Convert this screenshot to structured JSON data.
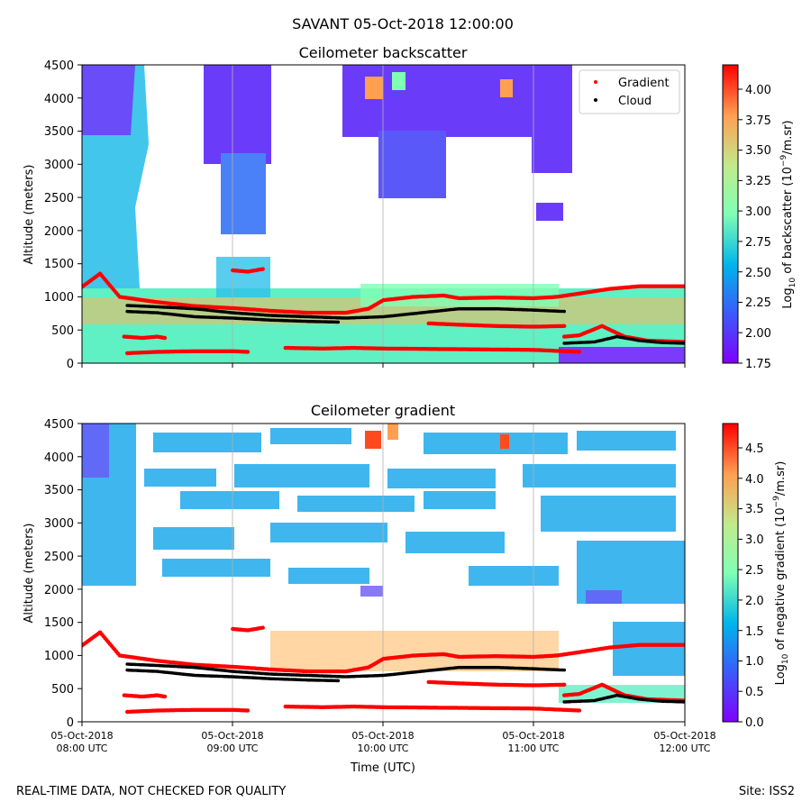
{
  "suptitle": "SAVANT 05-Oct-2018 12:00:00",
  "footer": {
    "left": "REAL-TIME DATA, NOT CHECKED FOR QUALITY",
    "right": "Site: ISS2"
  },
  "chart_data": [
    {
      "type": "heatmap",
      "title": "Ceilometer backscatter",
      "xlabel": "",
      "ylabel": "Altitude (meters)",
      "xlim": [
        "05-Oct-2018 08:00 UTC",
        "05-Oct-2018 12:00 UTC"
      ],
      "ylim": [
        0,
        4500
      ],
      "y_ticks": [
        "0",
        "500",
        "1000",
        "1500",
        "2000",
        "2500",
        "3000",
        "3500",
        "4000",
        "4500"
      ],
      "grid": "vertical lines at hourly ticks",
      "colormap": "rainbow",
      "colorbar": {
        "label_prefix": "Log",
        "label_sub": "10",
        "label_rest": " of backscatter (10",
        "label_exp": "−9",
        "label_unit": "/m.sr)",
        "range": [
          1.75,
          4.2
        ],
        "ticks": [
          "1.75",
          "2.00",
          "2.25",
          "2.50",
          "2.75",
          "3.00",
          "3.25",
          "3.50",
          "3.75",
          "4.00"
        ]
      },
      "legend": {
        "placement": "top-right",
        "entries": [
          {
            "name": "Gradient",
            "color": "#ff0000"
          },
          {
            "name": "Cloud",
            "color": "#000000"
          }
        ]
      }
    },
    {
      "type": "heatmap",
      "title": "Ceilometer gradient",
      "xlabel": "Time (UTC)",
      "ylabel": "Altitude (meters)",
      "xlim": [
        "05-Oct-2018 08:00 UTC",
        "05-Oct-2018 12:00 UTC"
      ],
      "ylim": [
        0,
        4500
      ],
      "y_ticks": [
        "0",
        "500",
        "1000",
        "1500",
        "2000",
        "2500",
        "3000",
        "3500",
        "4000",
        "4500"
      ],
      "x_ticks": [
        {
          "date": "05-Oct-2018",
          "time": "08:00 UTC"
        },
        {
          "date": "05-Oct-2018",
          "time": "09:00 UTC"
        },
        {
          "date": "05-Oct-2018",
          "time": "10:00 UTC"
        },
        {
          "date": "05-Oct-2018",
          "time": "11:00 UTC"
        },
        {
          "date": "05-Oct-2018",
          "time": "12:00 UTC"
        }
      ],
      "grid": "vertical lines at hourly ticks",
      "colormap": "rainbow",
      "colorbar": {
        "label_prefix": "Log",
        "label_sub": "10",
        "label_rest": " of negative gradient (10",
        "label_exp": "−9",
        "label_unit": "/m.sr)",
        "range": [
          0.0,
          4.9
        ],
        "ticks": [
          "0.0",
          "0.5",
          "1.0",
          "1.5",
          "2.0",
          "2.5",
          "3.0",
          "3.5",
          "4.0",
          "4.5"
        ]
      }
    }
  ],
  "series": {
    "gradient_layers": [
      {
        "hours": [
          8.0,
          8.12,
          8.25,
          8.5,
          8.75,
          9.0,
          9.25,
          9.5,
          9.75,
          9.9,
          10.0,
          10.2,
          10.4,
          10.5,
          10.75,
          11.0,
          11.15,
          11.3,
          11.5,
          11.7,
          11.85,
          12.0
        ],
        "altitude_m": [
          1150,
          1350,
          1000,
          920,
          860,
          830,
          790,
          760,
          760,
          820,
          950,
          1000,
          1020,
          980,
          990,
          980,
          1000,
          1050,
          1120,
          1160,
          1160,
          1160
        ]
      },
      {
        "hours": [
          8.28,
          8.4,
          8.5,
          8.55
        ],
        "altitude_m": [
          400,
          380,
          400,
          380
        ]
      },
      {
        "hours": [
          8.3,
          8.5,
          8.75,
          9.0,
          9.1
        ],
        "altitude_m": [
          150,
          170,
          180,
          180,
          170
        ]
      },
      {
        "hours": [
          9.0,
          9.1,
          9.2
        ],
        "altitude_m": [
          1400,
          1380,
          1420
        ]
      },
      {
        "hours": [
          9.35,
          9.6,
          9.8,
          10.0,
          10.5,
          11.0,
          11.3
        ],
        "altitude_m": [
          230,
          220,
          230,
          220,
          210,
          200,
          170
        ]
      },
      {
        "hours": [
          10.3,
          10.5,
          10.75,
          11.0,
          11.2
        ],
        "altitude_m": [
          600,
          580,
          560,
          550,
          560
        ]
      },
      {
        "hours": [
          11.2,
          11.3,
          11.45,
          11.6,
          11.75,
          12.0
        ],
        "altitude_m": [
          400,
          420,
          560,
          400,
          340,
          320
        ]
      }
    ],
    "cloud_layers": [
      {
        "hours": [
          8.3,
          8.5,
          8.75,
          9.0,
          9.25,
          9.5,
          9.75,
          10.0,
          10.25,
          10.5,
          10.75,
          11.0,
          11.2
        ],
        "altitude_m": [
          870,
          850,
          820,
          760,
          720,
          700,
          680,
          700,
          760,
          820,
          820,
          800,
          780
        ]
      },
      {
        "hours": [
          8.3,
          8.5,
          8.75,
          9.0,
          9.25,
          9.5,
          9.7
        ],
        "altitude_m": [
          780,
          760,
          700,
          680,
          650,
          630,
          620
        ]
      },
      {
        "hours": [
          11.2,
          11.4,
          11.55,
          11.7,
          11.85,
          12.0
        ],
        "altitude_m": [
          300,
          320,
          400,
          340,
          310,
          300
        ]
      }
    ]
  }
}
